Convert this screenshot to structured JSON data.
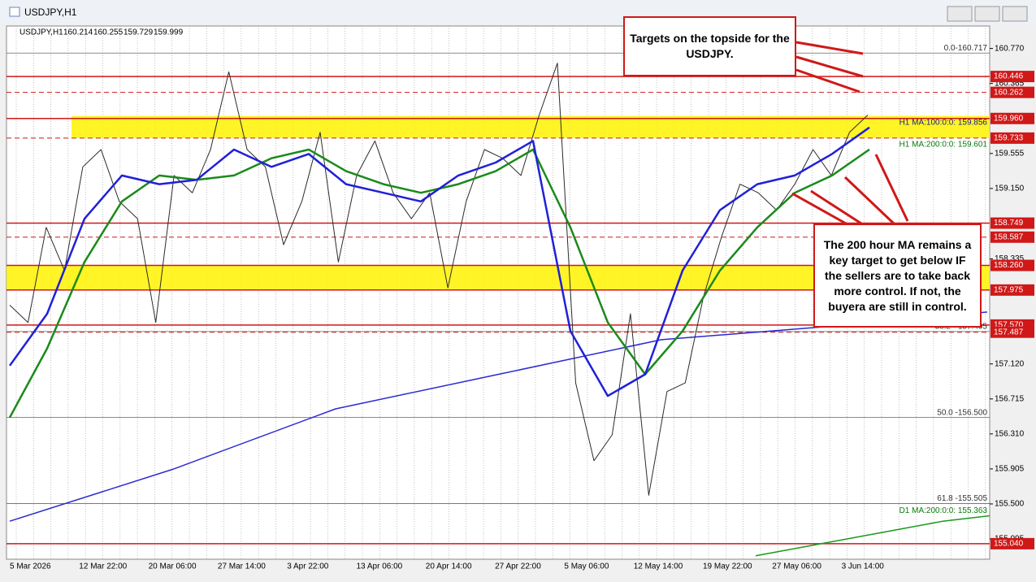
{
  "window": {
    "title": "USDJPY,H1"
  },
  "header": {
    "symbol": "USDJPY,H1",
    "open": 160.214,
    "high": 160.255,
    "low": 159.729,
    "close": 159.999
  },
  "price_axis": {
    "range": [
      154.86,
      161.03
    ],
    "ticks": [
      {
        "value": 160.77,
        "label": "160.770"
      },
      {
        "value": 160.365,
        "label": "160.365"
      },
      {
        "value": 159.555,
        "label": "159.555"
      },
      {
        "value": 159.15,
        "label": "159.150"
      },
      {
        "value": 158.335,
        "label": "158.335"
      },
      {
        "value": 157.12,
        "label": "157.120"
      },
      {
        "value": 156.715,
        "label": "156.715"
      },
      {
        "value": 156.31,
        "label": "156.310"
      },
      {
        "value": 155.905,
        "label": "155.905"
      },
      {
        "value": 155.5,
        "label": "155.500"
      },
      {
        "value": 155.095,
        "label": "155.095"
      }
    ]
  },
  "levels": [
    {
      "value": 160.446,
      "label": "160.446",
      "dashed": false
    },
    {
      "value": 160.262,
      "label": "160.262",
      "dashed": true
    },
    {
      "value": 159.96,
      "label": "159.960",
      "dashed": false
    },
    {
      "value": 159.733,
      "label": "159.733",
      "dashed": true
    },
    {
      "value": 158.749,
      "label": "158.749",
      "dashed": false
    },
    {
      "value": 158.587,
      "label": "158.587",
      "dashed": true
    },
    {
      "value": 158.26,
      "label": "158.260",
      "dashed": false
    },
    {
      "value": 157.975,
      "label": "157.975",
      "dashed": false
    },
    {
      "value": 157.57,
      "label": "157.570",
      "dashed": false
    },
    {
      "value": 157.487,
      "label": "157.487",
      "dashed": true
    },
    {
      "value": 155.04,
      "label": "155.040",
      "dashed": false
    }
  ],
  "zones": [
    [
      159.733,
      159.99
    ],
    [
      157.975,
      158.26
    ]
  ],
  "fib_levels": [
    {
      "value": 160.717,
      "label": "0.0-160.717"
    },
    {
      "value": 157.495,
      "label": "38.2 - 157.495"
    },
    {
      "value": 156.5,
      "label": "50.0 -156.500"
    },
    {
      "value": 155.505,
      "label": "61.8 -155.505"
    }
  ],
  "ma_labels": [
    {
      "value": 159.856,
      "label": "H1 MA:100:0:0: 159.856"
    },
    {
      "value": 159.601,
      "label": "H1 MA:200:0:0: 159.601"
    },
    {
      "value": 155.363,
      "label": "D1 MA:200:0:0: 155.363"
    }
  ],
  "time_labels": [
    "5 Mar 2026",
    "12 Mar 22:00",
    "20 Mar 06:00",
    "27 Mar 14:00",
    "3 Apr 22:00",
    "13 Apr 06:00",
    "20 Apr 14:00",
    "27 Apr 22:00",
    "5 May 06:00",
    "12 May 14:00",
    "19 May 22:00",
    "27 May 06:00",
    "3 Jun 14:00"
  ],
  "series": {
    "price": [
      157.8,
      157.6,
      158.7,
      158.2,
      159.4,
      159.6,
      159.0,
      158.8,
      157.6,
      159.3,
      159.1,
      159.6,
      160.5,
      159.6,
      159.4,
      158.5,
      159.0,
      159.8,
      158.3,
      159.3,
      159.7,
      159.1,
      158.8,
      159.1,
      158.0,
      159.0,
      159.6,
      159.5,
      159.3,
      160.0,
      160.6,
      156.9,
      156.0,
      156.3,
      157.7,
      155.6,
      156.8,
      156.9,
      157.9,
      158.6,
      159.2,
      159.1,
      158.9,
      159.2,
      159.6,
      159.3,
      159.8,
      160.0
    ],
    "ma100": [
      157.1,
      157.7,
      158.8,
      159.3,
      159.2,
      159.25,
      159.6,
      159.4,
      159.55,
      159.2,
      159.1,
      159.0,
      159.3,
      159.45,
      159.7,
      157.5,
      156.75,
      157.0,
      158.2,
      158.9,
      159.2,
      159.3,
      159.55,
      159.856
    ],
    "ma200": [
      156.5,
      157.3,
      158.3,
      159.0,
      159.3,
      159.25,
      159.3,
      159.5,
      159.6,
      159.35,
      159.2,
      159.1,
      159.2,
      159.35,
      159.6,
      158.7,
      157.6,
      157.0,
      157.5,
      158.2,
      158.7,
      159.1,
      159.3,
      159.601
    ],
    "ma_long": [
      155.3,
      155.9,
      156.6,
      157.0,
      157.4,
      157.55,
      157.72
    ],
    "d1_ma200": [
      154.9,
      155.0,
      155.1,
      155.2,
      155.3,
      155.363
    ]
  },
  "annotations": [
    "Targets on the topside for the USDJPY.",
    "The 200 hour MA remains a key target to get below IF the sellers are to take back more control. If not, the buyera are still in control."
  ]
}
